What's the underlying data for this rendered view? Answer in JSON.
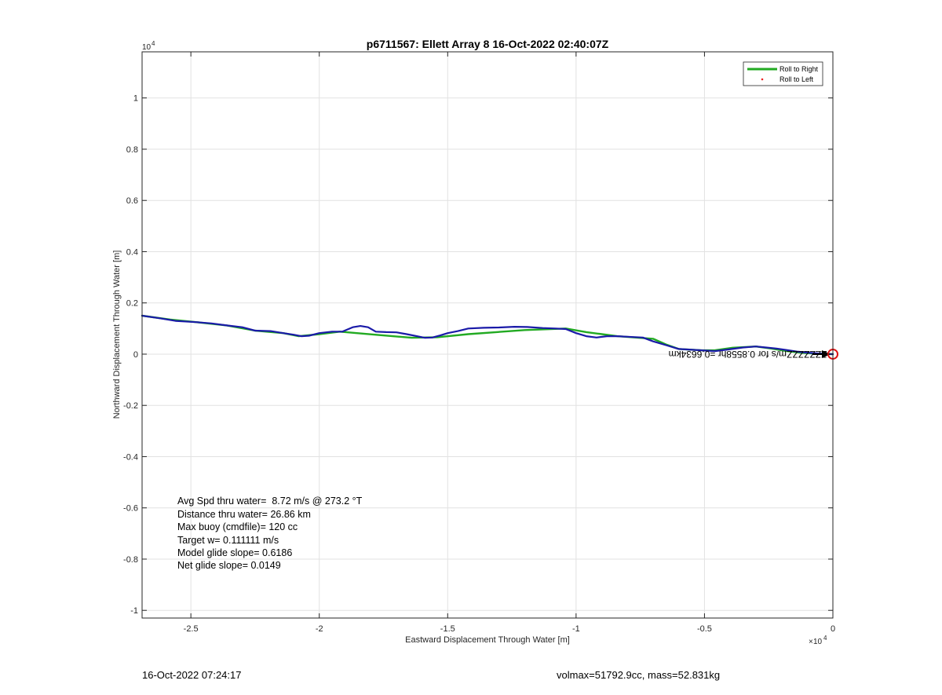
{
  "figure": {
    "footer_left": "16-Oct-2022 07:24:17",
    "footer_right": "volmax=51792.9cc, mass=52.831kg"
  },
  "chart_data": {
    "type": "line",
    "title": "p6711567: Ellett Array 8 16-Oct-2022 02:40:07Z",
    "xlabel": "Eastward Displacement Through Water [m]",
    "ylabel": "Northward Displacement Through Water [m]",
    "x_exponent": "10",
    "x_exponent_power": "4",
    "y_exponent": "10",
    "y_exponent_power": "4",
    "xlim": [
      -26900,
      0
    ],
    "ylim": [
      -10300,
      11800
    ],
    "xticks": [
      -25000,
      -20000,
      -15000,
      -10000,
      -5000,
      0
    ],
    "xtick_labels": [
      "-2.5",
      "-2",
      "-1.5",
      "-1",
      "-0.5",
      "0"
    ],
    "yticks": [
      -10000,
      -8000,
      -6000,
      -4000,
      -2000,
      0,
      2000,
      4000,
      6000,
      8000,
      10000
    ],
    "ytick_labels": [
      "-1",
      "-0.8",
      "-0.6",
      "-0.4",
      "-0.2",
      "0",
      "0.2",
      "0.4",
      "0.6",
      "0.8",
      "1"
    ],
    "grid": true,
    "legend_position": "top-right",
    "colors": {
      "roll_right": "#22aa22",
      "roll_left": "#ee2222",
      "track": "#1a1aa8",
      "current_vector": "#000000",
      "end_marker": "#dd1111",
      "grid": "#e2e2e2",
      "axes": "#262626"
    },
    "legend": [
      {
        "label": "Roll to Right",
        "style": "line"
      },
      {
        "label": "Roll to Left",
        "style": "dot"
      }
    ],
    "series": [
      {
        "name": "Roll to Right",
        "x": [
          -26900,
          -25800,
          -24800,
          -23600,
          -22500,
          -21400,
          -20800,
          -20000,
          -19200,
          -17600,
          -16400,
          -15400,
          -14200,
          -12000,
          -10400,
          -9600,
          -8400,
          -7000,
          -6500,
          -6000,
          -5100,
          -4600,
          -3900,
          -3000,
          -2400,
          -1800,
          -1200,
          -600,
          0
        ],
        "y": [
          1500,
          1350,
          1250,
          1120,
          920,
          820,
          700,
          780,
          880,
          740,
          640,
          660,
          780,
          940,
          1000,
          860,
          700,
          600,
          380,
          200,
          150,
          150,
          250,
          300,
          220,
          120,
          50,
          20,
          0
        ]
      },
      {
        "name": "Track",
        "x": [
          -26900,
          -26200,
          -25600,
          -24800,
          -24200,
          -23600,
          -23000,
          -22500,
          -21900,
          -21400,
          -21000,
          -20700,
          -20400,
          -20000,
          -19500,
          -19100,
          -18700,
          -18400,
          -18100,
          -17800,
          -17400,
          -17000,
          -16600,
          -16200,
          -15900,
          -15600,
          -15300,
          -15000,
          -14600,
          -14200,
          -13600,
          -13000,
          -12400,
          -11900,
          -11300,
          -10800,
          -10400,
          -10000,
          -9600,
          -9200,
          -8800,
          -8400,
          -8000,
          -7400,
          -7000,
          -6500,
          -6000,
          -5600,
          -5100,
          -4600,
          -4100,
          -3500,
          -3000,
          -2600,
          -2200,
          -1800,
          -1400,
          -1000,
          -600,
          -300,
          0
        ],
        "y": [
          1500,
          1400,
          1300,
          1250,
          1200,
          1120,
          1050,
          920,
          900,
          820,
          760,
          700,
          720,
          820,
          880,
          880,
          1050,
          1100,
          1050,
          880,
          860,
          850,
          780,
          700,
          640,
          650,
          730,
          820,
          900,
          1000,
          1030,
          1040,
          1070,
          1060,
          1020,
          1000,
          980,
          820,
          700,
          650,
          700,
          700,
          680,
          650,
          500,
          350,
          200,
          180,
          150,
          120,
          180,
          260,
          300,
          260,
          220,
          160,
          100,
          60,
          30,
          10,
          0
        ]
      }
    ],
    "current_label": {
      "text": "ZZZZZZZm/s for 0.8558hr =0.6634km",
      "x": -6400,
      "y": 0
    },
    "annotations": [
      "Avg Spd thru water=  8.72 m/s @ 273.2 °T",
      "Distance thru water= 26.86 km",
      "Max buoy (cmdfile)= 120 cc",
      "Target w= 0.111111 m/s",
      "Model glide slope= 0.6186",
      "Net glide slope= 0.0149"
    ]
  }
}
